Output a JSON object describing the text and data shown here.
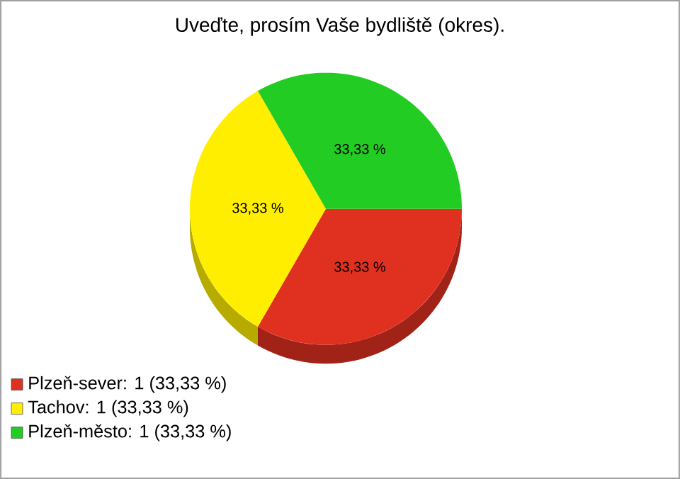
{
  "chart_data": {
    "type": "pie",
    "title": "Uveďte, prosím Vaše bydliště (okres).",
    "categories": [
      "Plzeň-sever: 1 (33,33 %)",
      "Tachov: 1 (33,33 %)",
      "Plzeň-město: 1 (33,33 %)"
    ],
    "values": [
      33.33,
      33.33,
      33.33
    ],
    "colors": [
      "#e03020",
      "#ffee00",
      "#22cc22"
    ],
    "value_labels": [
      "33,33 %",
      "33,33 %",
      "33,33 %"
    ],
    "legend": "bottom left"
  }
}
